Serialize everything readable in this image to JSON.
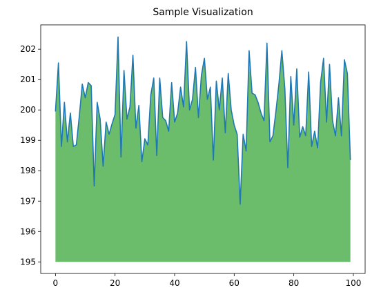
{
  "chart_data": {
    "type": "area",
    "title": "Sample Visualization",
    "xlabel": "",
    "ylabel": "",
    "xlim": [
      -4.95,
      103.95
    ],
    "ylim": [
      194.62,
      202.8
    ],
    "xticks": [
      0,
      20,
      40,
      60,
      80,
      100
    ],
    "yticks": [
      195,
      196,
      197,
      198,
      199,
      200,
      201,
      202
    ],
    "fill_baseline": 195,
    "grid": false,
    "legend": "none",
    "colors": {
      "line": "#1f77b4",
      "fill": "#2ca02c",
      "axis": "#000000",
      "background": "#ffffff"
    },
    "fill_alpha": 0.7,
    "x": [
      0,
      1,
      2,
      3,
      4,
      5,
      6,
      7,
      8,
      9,
      10,
      11,
      12,
      13,
      14,
      15,
      16,
      17,
      18,
      19,
      20,
      21,
      22,
      23,
      24,
      25,
      26,
      27,
      28,
      29,
      30,
      31,
      32,
      33,
      34,
      35,
      36,
      37,
      38,
      39,
      40,
      41,
      42,
      43,
      44,
      45,
      46,
      47,
      48,
      49,
      50,
      51,
      52,
      53,
      54,
      55,
      56,
      57,
      58,
      59,
      60,
      61,
      62,
      63,
      64,
      65,
      66,
      67,
      68,
      69,
      70,
      71,
      72,
      73,
      74,
      75,
      76,
      77,
      78,
      79,
      80,
      81,
      82,
      83,
      84,
      85,
      86,
      87,
      88,
      89,
      90,
      91,
      92,
      93,
      94,
      95,
      96,
      97,
      98,
      99
    ],
    "y": [
      199.95,
      201.55,
      198.8,
      200.25,
      198.95,
      199.9,
      198.8,
      198.85,
      199.8,
      200.85,
      200.4,
      200.9,
      200.8,
      197.5,
      200.25,
      199.7,
      198.15,
      199.6,
      199.2,
      199.55,
      199.85,
      202.4,
      198.45,
      201.3,
      199.7,
      200.1,
      201.8,
      199.4,
      200.15,
      198.3,
      199.05,
      198.85,
      200.5,
      201.05,
      198.5,
      201.05,
      199.75,
      199.65,
      199.3,
      200.9,
      199.6,
      199.9,
      200.75,
      200.1,
      202.25,
      200.0,
      200.35,
      201.4,
      199.75,
      201.15,
      201.7,
      200.35,
      200.75,
      198.35,
      200.95,
      200.0,
      201.05,
      199.25,
      201.2,
      200.0,
      199.5,
      199.2,
      196.9,
      199.2,
      198.65,
      201.95,
      200.55,
      200.5,
      200.25,
      199.9,
      199.65,
      202.2,
      198.95,
      199.15,
      199.95,
      200.85,
      201.95,
      200.7,
      198.1,
      201.1,
      199.5,
      201.35,
      199.1,
      199.45,
      199.15,
      201.25,
      198.8,
      199.3,
      198.75,
      200.9,
      201.7,
      199.6,
      201.5,
      199.65,
      199.15,
      200.4,
      199.15,
      201.65,
      201.2,
      198.35
    ]
  }
}
